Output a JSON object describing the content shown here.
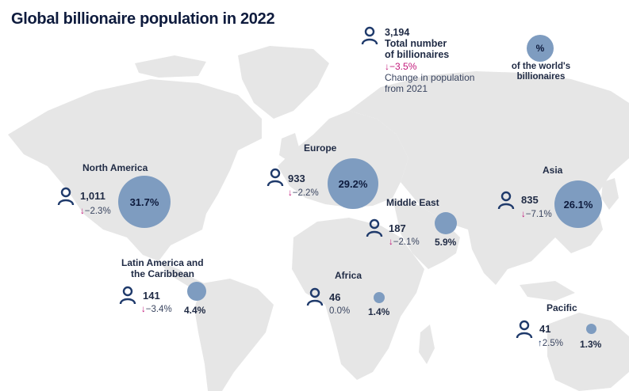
{
  "title": "Global billionaire population in 2022",
  "legend": {
    "total_value": "3,194",
    "total_label_line1": "Total number",
    "total_label_line2": "of billionaires",
    "total_change": "↓−3.5%",
    "change_label_line1": "Change in population",
    "change_label_line2": "from 2021",
    "share_symbol": "%",
    "share_label_line1": "of the world's",
    "share_label_line2": "billionaires"
  },
  "colors": {
    "bubble": "#7e9cc0",
    "land": "#e6e6e6",
    "down_arrow": "#c2187a",
    "up_arrow": "#1f3a6b",
    "title": "#0e1b3d"
  },
  "icons": {
    "person": "person-icon"
  },
  "chart_data": {
    "type": "bubble-map",
    "title": "Global billionaire population in 2022",
    "total_billionaires": 3194,
    "total_change_pct": -3.5,
    "regions": [
      {
        "name": "North America",
        "name_line2": "",
        "count": "1,011",
        "change": "↓−2.3%",
        "share": "31.7%",
        "share_value": 31.7
      },
      {
        "name": "Europe",
        "name_line2": "",
        "count": "933",
        "change": "↓−2.2%",
        "share": "29.2%",
        "share_value": 29.2
      },
      {
        "name": "Asia",
        "name_line2": "",
        "count": "835",
        "change": "↓−7.1%",
        "share": "26.1%",
        "share_value": 26.1
      },
      {
        "name": "Middle East",
        "name_line2": "",
        "count": "187",
        "change": "↓−2.1%",
        "share": "5.9%",
        "share_value": 5.9
      },
      {
        "name": "Latin America and",
        "name_line2": "the Caribbean",
        "count": "141",
        "change": "↓−3.4%",
        "share": "4.4%",
        "share_value": 4.4
      },
      {
        "name": "Africa",
        "name_line2": "",
        "count": "46",
        "change": "0.0%",
        "share": "1.4%",
        "share_value": 1.4
      },
      {
        "name": "Pacific",
        "name_line2": "",
        "count": "41",
        "change": "↑2.5%",
        "share": "1.3%",
        "share_value": 1.3
      }
    ]
  }
}
